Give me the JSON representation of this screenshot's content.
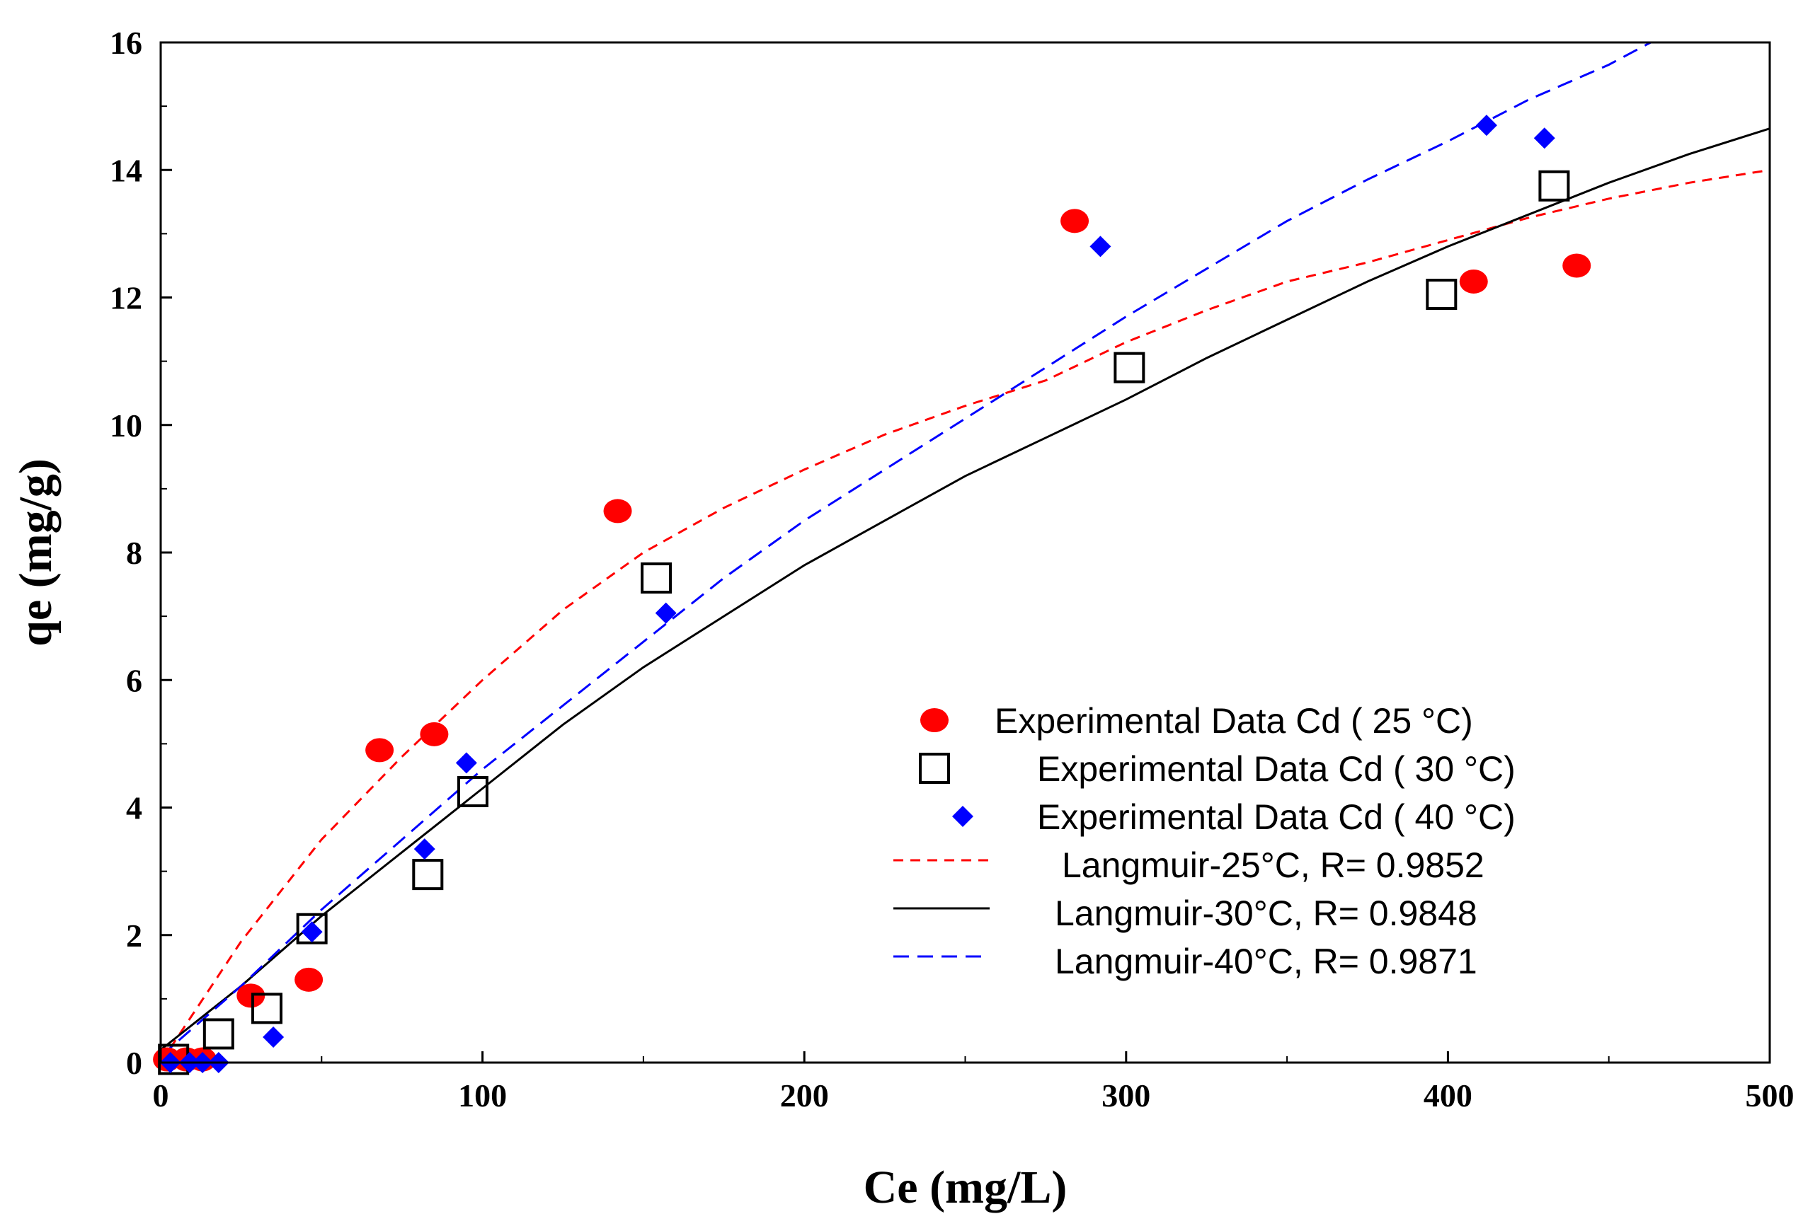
{
  "chart_data": {
    "type": "scatter",
    "title": "",
    "xlabel": "Ce (mg/L)",
    "ylabel": "qe (mg/g)",
    "xlim": [
      0,
      500
    ],
    "ylim": [
      0,
      16
    ],
    "xticks": [
      0,
      100,
      200,
      300,
      400,
      500
    ],
    "yticks": [
      0,
      2,
      4,
      6,
      8,
      10,
      12,
      14,
      16
    ],
    "grid": false,
    "legend_position": "bottom-right",
    "series": [
      {
        "name": "Experimental Data Cd ( 25 °C)",
        "kind": "scatter",
        "marker": "circle",
        "color": "#ff0000",
        "x": [
          2,
          8,
          13,
          28,
          46,
          68,
          85,
          142,
          284,
          408,
          440
        ],
        "y": [
          0.05,
          0.05,
          0.05,
          1.05,
          1.3,
          4.9,
          5.15,
          8.65,
          13.2,
          12.25,
          12.5
        ]
      },
      {
        "name": "Experimental Data Cd ( 30 °C)",
        "kind": "scatter",
        "marker": "open-square",
        "color": "#000000",
        "x": [
          4,
          18,
          33,
          47,
          83,
          97,
          154,
          301,
          398,
          433
        ],
        "y": [
          0.05,
          0.45,
          0.85,
          2.1,
          2.95,
          4.25,
          7.6,
          10.9,
          12.05,
          13.75
        ]
      },
      {
        "name": "Experimental Data Cd ( 40 °C)",
        "kind": "scatter",
        "marker": "diamond",
        "color": "#0000ff",
        "x": [
          3,
          9,
          13,
          18,
          35,
          47,
          82,
          95,
          157,
          292,
          412,
          430
        ],
        "y": [
          0.0,
          0.0,
          0.0,
          0.0,
          0.4,
          2.05,
          3.35,
          4.7,
          7.05,
          12.8,
          14.7,
          14.5
        ]
      },
      {
        "name": "Langmuir-25°C, R= 0.9852",
        "kind": "line",
        "style": "dashed",
        "color": "#ff0000",
        "x": [
          0,
          25,
          50,
          75,
          100,
          125,
          150,
          175,
          200,
          225,
          250,
          275,
          300,
          325,
          350,
          375,
          400,
          425,
          450,
          475,
          500
        ],
        "y": [
          0,
          1.9,
          3.5,
          4.8,
          6.0,
          7.1,
          8.0,
          8.7,
          9.3,
          9.85,
          10.3,
          10.7,
          11.3,
          11.8,
          12.25,
          12.55,
          12.9,
          13.25,
          13.55,
          13.8,
          14.0
        ]
      },
      {
        "name": "Langmuir-30°C, R= 0.9848",
        "kind": "line",
        "style": "solid",
        "color": "#000000",
        "x": [
          0,
          25,
          50,
          75,
          100,
          125,
          150,
          175,
          200,
          225,
          250,
          275,
          300,
          325,
          350,
          375,
          400,
          425,
          450,
          475,
          500
        ],
        "y": [
          0.2,
          1.2,
          2.3,
          3.3,
          4.3,
          5.3,
          6.2,
          7.0,
          7.8,
          8.5,
          9.2,
          9.8,
          10.4,
          11.05,
          11.65,
          12.25,
          12.8,
          13.3,
          13.8,
          14.25,
          14.65
        ]
      },
      {
        "name": "Langmuir-40°C, R= 0.9871",
        "kind": "line",
        "style": "dashed",
        "color": "#0000ff",
        "x": [
          0,
          25,
          50,
          75,
          100,
          125,
          150,
          175,
          200,
          225,
          250,
          275,
          300,
          325,
          350,
          375,
          400,
          425,
          450,
          463
        ],
        "y": [
          0.1,
          1.2,
          2.4,
          3.5,
          4.6,
          5.6,
          6.6,
          7.6,
          8.5,
          9.3,
          10.1,
          10.9,
          11.7,
          12.45,
          13.2,
          13.85,
          14.45,
          15.1,
          15.65,
          16.0
        ]
      }
    ]
  }
}
